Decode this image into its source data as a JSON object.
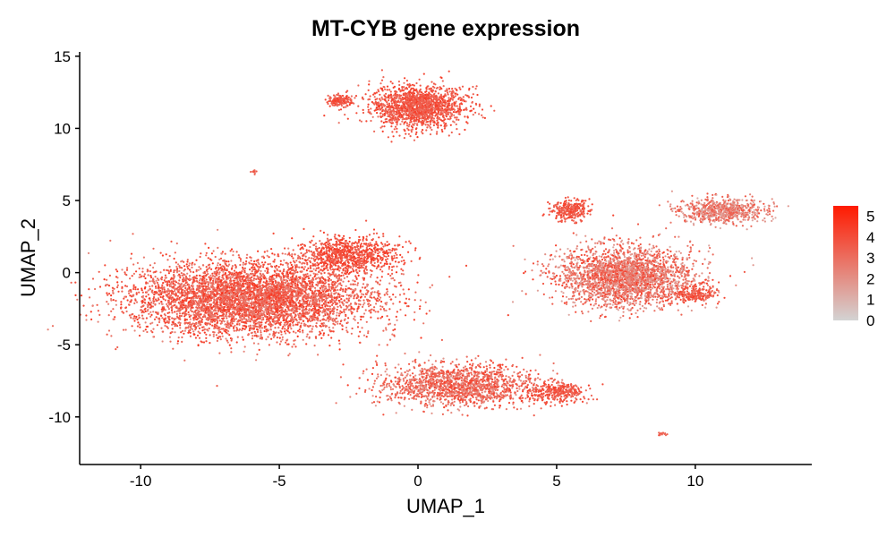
{
  "chart_data": {
    "type": "scatter",
    "title": "MT-CYB gene expression",
    "xlabel": "UMAP_1",
    "ylabel": "UMAP_2",
    "xlim": [
      -12.2,
      14.2
    ],
    "ylim": [
      -13.3,
      15.3
    ],
    "xticks": [
      -10,
      -5,
      0,
      5,
      10
    ],
    "yticks": [
      -10,
      -5,
      0,
      5,
      10,
      15
    ],
    "grid": false,
    "legend": {
      "placement": "right",
      "kind": "continuous colorbar",
      "ticks": [
        0,
        1,
        2,
        3,
        4,
        5
      ],
      "range": [
        0,
        5.5
      ],
      "low_color": "#d3d3d3",
      "high_color": "#ff1a00"
    },
    "clusters": [
      {
        "label": "top-center",
        "center": [
          0.0,
          11.5
        ],
        "spread": [
          1.4,
          1.2
        ],
        "points": 1600,
        "expr_range": [
          2.8,
          4.6
        ]
      },
      {
        "label": "top-left-small",
        "center": [
          -2.8,
          11.9
        ],
        "spread": [
          0.35,
          0.35
        ],
        "points": 160,
        "expr_range": [
          3.0,
          4.5
        ]
      },
      {
        "label": "tiny-isolated",
        "center": [
          -5.9,
          7.0
        ],
        "spread": [
          0.12,
          0.15
        ],
        "points": 12,
        "expr_range": [
          3.0,
          4.0
        ]
      },
      {
        "label": "left-large",
        "center": [
          -6.0,
          -1.8
        ],
        "spread": [
          3.6,
          2.1
        ],
        "points": 5200,
        "expr_range": [
          2.2,
          4.8
        ]
      },
      {
        "label": "left-upper-right-lobe",
        "center": [
          -2.5,
          1.2
        ],
        "spread": [
          1.5,
          1.0
        ],
        "points": 900,
        "expr_range": [
          3.0,
          4.8
        ]
      },
      {
        "label": "bottom-center",
        "center": [
          1.5,
          -7.8
        ],
        "spread": [
          2.4,
          1.2
        ],
        "points": 1600,
        "expr_range": [
          1.8,
          4.5
        ]
      },
      {
        "label": "bottom-right-tail",
        "center": [
          5.0,
          -8.3
        ],
        "spread": [
          0.8,
          0.6
        ],
        "points": 320,
        "expr_range": [
          3.0,
          4.5
        ]
      },
      {
        "label": "right-main",
        "center": [
          7.5,
          -0.3
        ],
        "spread": [
          2.0,
          1.7
        ],
        "points": 2600,
        "expr_range": [
          1.2,
          4.5
        ]
      },
      {
        "label": "right-upper-arm",
        "center": [
          11.0,
          4.3
        ],
        "spread": [
          1.3,
          0.7
        ],
        "points": 700,
        "expr_range": [
          1.0,
          4.0
        ]
      },
      {
        "label": "right-left-blob",
        "center": [
          5.5,
          4.3
        ],
        "spread": [
          0.6,
          0.6
        ],
        "points": 300,
        "expr_range": [
          3.0,
          4.5
        ]
      },
      {
        "label": "right-lower-blob",
        "center": [
          10.0,
          -1.5
        ],
        "spread": [
          0.6,
          0.5
        ],
        "points": 200,
        "expr_range": [
          3.0,
          4.5
        ]
      },
      {
        "label": "tiny-bottom-right",
        "center": [
          8.8,
          -11.2
        ],
        "spread": [
          0.15,
          0.1
        ],
        "points": 15,
        "expr_range": [
          3.0,
          4.0
        ]
      }
    ]
  }
}
